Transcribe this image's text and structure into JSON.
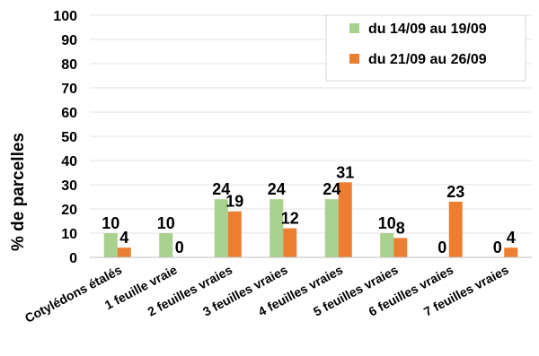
{
  "chart_data": {
    "type": "bar",
    "ylabel": "% de parcelles",
    "ylim": [
      0,
      100
    ],
    "ytick_step": 10,
    "grid": true,
    "legend_position": "top-right",
    "categories": [
      "Cotylédons étalés",
      "1 feuille vraie",
      "2 feuilles vraies",
      "3 feuilles vraies",
      "4 feuilles vraies",
      "5 feuilles vraies",
      "6 feuilles vraies",
      "7 feuilles vraies"
    ],
    "series": [
      {
        "name": "du 14/09 au 19/09",
        "color": "#a9d18e",
        "values": [
          10,
          10,
          24,
          24,
          24,
          10,
          0,
          0
        ]
      },
      {
        "name": "du 21/09 au 26/09",
        "color": "#ed7d31",
        "values": [
          4,
          0,
          19,
          12,
          31,
          8,
          23,
          4
        ]
      }
    ]
  }
}
